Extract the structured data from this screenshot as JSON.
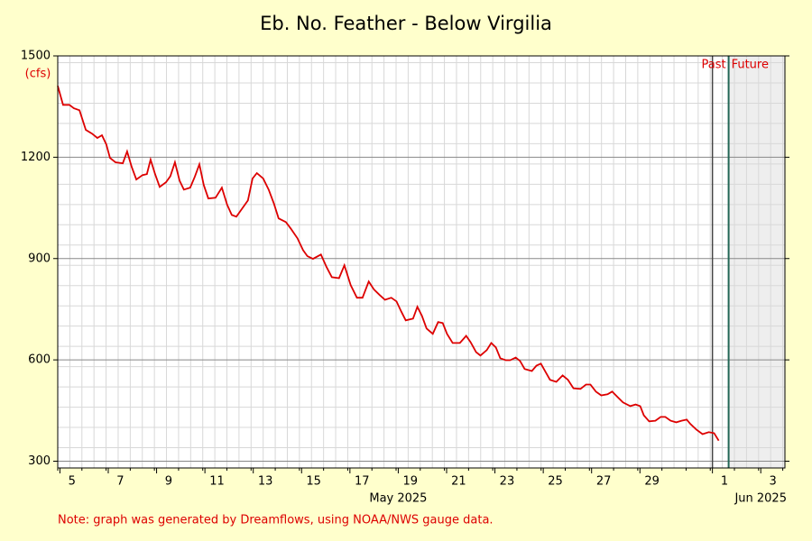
{
  "chart_data": {
    "type": "line",
    "title": "Eb. No. Feather - Below Virgilia",
    "y_unit_label": "(cfs)",
    "note": "Note: graph was generated by Dreamflows, using NOAA/NWS gauge data.",
    "past_label": "Past",
    "future_label": "Future",
    "now_x": 32.67,
    "month_labels": [
      {
        "value": 18.5,
        "label": "May 2025"
      },
      {
        "value": 33.5,
        "label": "Jun 2025"
      }
    ],
    "month_boundary": 32,
    "xlim": [
      4.91,
      35
    ],
    "ylim": [
      280,
      1500
    ],
    "xticks": [
      5,
      7,
      9,
      11,
      13,
      15,
      17,
      19,
      21,
      23,
      25,
      27,
      29,
      {
        "value": 32,
        "label": "1"
      },
      {
        "value": 34,
        "label": "3"
      }
    ],
    "yticks": [
      300,
      600,
      900,
      1200,
      1500
    ],
    "grid": true,
    "x": [
      4.91,
      5.13,
      5.39,
      5.58,
      5.81,
      6.07,
      6.33,
      6.55,
      6.74,
      6.92,
      7.07,
      7.3,
      7.6,
      7.78,
      7.97,
      8.16,
      8.42,
      8.6,
      8.75,
      8.94,
      9.13,
      9.39,
      9.57,
      9.76,
      9.95,
      10.13,
      10.39,
      10.58,
      10.77,
      10.95,
      11.14,
      11.44,
      11.7,
      11.92,
      12.11,
      12.3,
      12.52,
      12.78,
      12.97,
      13.15,
      13.41,
      13.64,
      13.86,
      14.05,
      14.35,
      14.57,
      14.83,
      15.06,
      15.24,
      15.47,
      15.8,
      16.03,
      16.25,
      16.55,
      16.77,
      17.03,
      17.29,
      17.52,
      17.78,
      18.0,
      18.23,
      18.45,
      18.71,
      18.93,
      19.12,
      19.31,
      19.61,
      19.79,
      19.98,
      20.17,
      20.43,
      20.65,
      20.84,
      21.02,
      21.25,
      21.55,
      21.81,
      21.99,
      22.22,
      22.4,
      22.66,
      22.85,
      23.04,
      23.22,
      23.45,
      23.63,
      23.86,
      24.04,
      24.23,
      24.53,
      24.72,
      24.9,
      25.09,
      25.28,
      25.54,
      25.8,
      26.02,
      26.25,
      26.54,
      26.77,
      26.95,
      27.18,
      27.4,
      27.66,
      27.85,
      28.07,
      28.3,
      28.6,
      28.82,
      29.01,
      29.16,
      29.38,
      29.64,
      29.86,
      30.05,
      30.27,
      30.5,
      30.72,
      30.94,
      31.09,
      31.33,
      31.59,
      31.85,
      32.07,
      32.26
    ],
    "series": [
      {
        "color": "#dd0000",
        "values": [
          1411,
          1355,
          1355,
          1345,
          1339,
          1281,
          1270,
          1257,
          1265,
          1238,
          1198,
          1185,
          1182,
          1217,
          1171,
          1134,
          1147,
          1150,
          1193,
          1150,
          1112,
          1126,
          1144,
          1185,
          1131,
          1104,
          1110,
          1142,
          1179,
          1118,
          1078,
          1080,
          1110,
          1059,
          1029,
          1024,
          1046,
          1072,
          1137,
          1153,
          1137,
          1104,
          1062,
          1019,
          1008,
          987,
          960,
          925,
          907,
          899,
          912,
          875,
          845,
          842,
          880,
          821,
          784,
          784,
          832,
          808,
          792,
          778,
          784,
          773,
          744,
          717,
          722,
          757,
          730,
          693,
          677,
          712,
          709,
          677,
          650,
          650,
          671,
          653,
          623,
          613,
          629,
          650,
          637,
          605,
          599,
          599,
          607,
          597,
          573,
          567,
          583,
          589,
          565,
          541,
          535,
          554,
          541,
          516,
          514,
          527,
          527,
          506,
          495,
          498,
          506,
          490,
          474,
          463,
          468,
          463,
          436,
          418,
          420,
          431,
          431,
          420,
          415,
          420,
          423,
          410,
          394,
          380,
          386,
          383,
          361
        ]
      }
    ]
  }
}
